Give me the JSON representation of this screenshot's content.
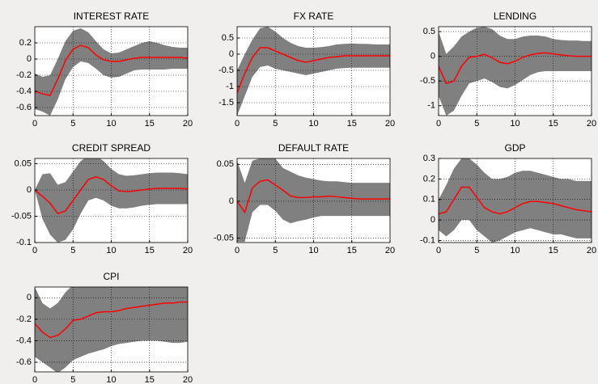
{
  "chart_data": [
    {
      "type": "line",
      "title": "INTEREST RATE",
      "x": [
        0,
        1,
        2,
        3,
        4,
        5,
        6,
        7,
        8,
        9,
        10,
        11,
        12,
        13,
        14,
        15,
        16,
        17,
        18,
        19,
        20
      ],
      "band": {
        "color": "#808080",
        "upper": [
          -0.18,
          -0.22,
          -0.2,
          0.0,
          0.22,
          0.35,
          0.38,
          0.33,
          0.22,
          0.12,
          0.07,
          0.08,
          0.12,
          0.16,
          0.2,
          0.22,
          0.2,
          0.17,
          0.15,
          0.14,
          0.14
        ],
        "lower": [
          -0.62,
          -0.65,
          -0.7,
          -0.5,
          -0.25,
          -0.1,
          -0.03,
          -0.05,
          -0.12,
          -0.2,
          -0.23,
          -0.22,
          -0.18,
          -0.14,
          -0.13,
          -0.13,
          -0.13,
          -0.13,
          -0.12,
          -0.12,
          -0.12
        ]
      },
      "series": [
        {
          "color": "#ff0000",
          "values": [
            -0.4,
            -0.43,
            -0.45,
            -0.25,
            -0.02,
            0.12,
            0.17,
            0.14,
            0.05,
            -0.01,
            -0.03,
            -0.03,
            -0.01,
            0.01,
            0.02,
            0.02,
            0.02,
            0.02,
            0.02,
            0.02,
            0.01
          ]
        }
      ],
      "xlim": [
        0,
        20
      ],
      "xticks": [
        0,
        5,
        10,
        15,
        20
      ],
      "ylim": [
        -0.7,
        0.4
      ],
      "yticks": [
        -0.6,
        -0.4,
        -0.2,
        0,
        0.2
      ],
      "grid": true
    },
    {
      "type": "line",
      "title": "FX RATE",
      "x": [
        0,
        1,
        2,
        3,
        4,
        5,
        6,
        7,
        8,
        9,
        10,
        11,
        12,
        13,
        14,
        15,
        16,
        17,
        18,
        19,
        20
      ],
      "band": {
        "color": "#808080",
        "upper": [
          -0.5,
          0,
          0.45,
          0.8,
          0.85,
          0.7,
          0.5,
          0.35,
          0.25,
          0.2,
          0.2,
          0.22,
          0.25,
          0.3,
          0.32,
          0.33,
          0.32,
          0.32,
          0.3,
          0.3,
          0.3
        ],
        "lower": [
          -1.9,
          -1.3,
          -0.7,
          -0.4,
          -0.35,
          -0.45,
          -0.5,
          -0.55,
          -0.6,
          -0.65,
          -0.6,
          -0.55,
          -0.5,
          -0.45,
          -0.43,
          -0.42,
          -0.42,
          -0.42,
          -0.42,
          -0.42,
          -0.42
        ]
      },
      "series": [
        {
          "color": "#ff0000",
          "values": [
            -1.2,
            -0.6,
            -0.1,
            0.2,
            0.2,
            0.1,
            0,
            -0.1,
            -0.2,
            -0.25,
            -0.2,
            -0.15,
            -0.1,
            -0.08,
            -0.05,
            -0.05,
            -0.05,
            -0.05,
            -0.05,
            -0.05,
            -0.05
          ]
        }
      ],
      "xlim": [
        0,
        20
      ],
      "xticks": [
        0,
        5,
        10,
        15,
        20
      ],
      "ylim": [
        -1.9,
        0.85
      ],
      "yticks": [
        -1.5,
        -1,
        -0.5,
        0,
        0.5
      ],
      "grid": true
    },
    {
      "type": "line",
      "title": "LENDING",
      "x": [
        0,
        1,
        2,
        3,
        4,
        5,
        6,
        7,
        8,
        9,
        10,
        11,
        12,
        13,
        14,
        15,
        16,
        17,
        18,
        19,
        20
      ],
      "band": {
        "color": "#808080",
        "upper": [
          0.5,
          0.05,
          0.2,
          0.4,
          0.5,
          0.58,
          0.6,
          0.55,
          0.42,
          0.35,
          0.35,
          0.4,
          0.42,
          0.42,
          0.4,
          0.35,
          0.33,
          0.32,
          0.32,
          0.31,
          0.31
        ],
        "lower": [
          -0.8,
          -1.2,
          -1.1,
          -0.8,
          -0.55,
          -0.5,
          -0.45,
          -0.52,
          -0.62,
          -0.65,
          -0.58,
          -0.48,
          -0.38,
          -0.32,
          -0.3,
          -0.3,
          -0.3,
          -0.3,
          -0.3,
          -0.3,
          -0.3
        ]
      },
      "series": [
        {
          "color": "#ff0000",
          "values": [
            -0.2,
            -0.55,
            -0.5,
            -0.2,
            -0.02,
            0,
            0.04,
            -0.03,
            -0.12,
            -0.15,
            -0.1,
            -0.02,
            0.03,
            0.06,
            0.07,
            0.05,
            0.03,
            0.01,
            0,
            0,
            0
          ]
        }
      ],
      "xlim": [
        0,
        20
      ],
      "xticks": [
        0,
        5,
        10,
        15,
        20
      ],
      "ylim": [
        -1.2,
        0.6
      ],
      "yticks": [
        -1,
        -0.5,
        0,
        0.5
      ],
      "grid": true
    },
    {
      "type": "line",
      "title": "CREDIT SPREAD",
      "x": [
        0,
        1,
        2,
        3,
        4,
        5,
        6,
        7,
        8,
        9,
        10,
        11,
        12,
        13,
        14,
        15,
        16,
        17,
        18,
        19,
        20
      ],
      "band": {
        "color": "#808080",
        "upper": [
          0,
          0.03,
          0.032,
          0.01,
          0.015,
          0.035,
          0.055,
          0.065,
          0.065,
          0.055,
          0.04,
          0.03,
          0.027,
          0.028,
          0.03,
          0.032,
          0.033,
          0.033,
          0.033,
          0.032,
          0.03
        ],
        "lower": [
          0,
          -0.055,
          -0.085,
          -0.1,
          -0.095,
          -0.075,
          -0.045,
          -0.02,
          -0.015,
          -0.02,
          -0.03,
          -0.035,
          -0.035,
          -0.033,
          -0.03,
          -0.028,
          -0.027,
          -0.027,
          -0.027,
          -0.027,
          -0.027
        ]
      },
      "series": [
        {
          "color": "#ff0000",
          "values": [
            0,
            -0.012,
            -0.025,
            -0.045,
            -0.04,
            -0.02,
            0,
            0.02,
            0.025,
            0.02,
            0.008,
            -0.002,
            -0.003,
            -0.002,
            0,
            0.002,
            0.003,
            0.003,
            0.003,
            0.003,
            0.002
          ]
        }
      ],
      "xlim": [
        0,
        20
      ],
      "xticks": [
        0,
        5,
        10,
        15,
        20
      ],
      "ylim": [
        -0.1,
        0.06
      ],
      "yticks": [
        -0.1,
        -0.05,
        0,
        0.05
      ],
      "grid": true
    },
    {
      "type": "line",
      "title": "DEFAULT RATE",
      "x": [
        0,
        1,
        2,
        3,
        4,
        5,
        6,
        7,
        8,
        9,
        10,
        11,
        12,
        13,
        14,
        15,
        16,
        17,
        18,
        19,
        20
      ],
      "band": {
        "color": "#808080",
        "upper": [
          0.055,
          0.025,
          0.055,
          0.058,
          0.058,
          0.058,
          0.045,
          0.04,
          0.035,
          0.032,
          0.03,
          0.028,
          0.027,
          0.027,
          0.026,
          0.025,
          0.025,
          0.025,
          0.025,
          0.025,
          0.025
        ],
        "lower": [
          -0.055,
          -0.055,
          -0.015,
          -0.005,
          -0.005,
          -0.013,
          -0.025,
          -0.03,
          -0.027,
          -0.025,
          -0.022,
          -0.02,
          -0.02,
          -0.02,
          -0.02,
          -0.02,
          -0.02,
          -0.02,
          -0.02,
          -0.02,
          -0.02
        ]
      },
      "series": [
        {
          "color": "#ff0000",
          "values": [
            0,
            -0.015,
            0.018,
            0.027,
            0.029,
            0.022,
            0.015,
            0.007,
            0.005,
            0.005,
            0.006,
            0.006,
            0.007,
            0.006,
            0.005,
            0.004,
            0.003,
            0.003,
            0.003,
            0.003,
            0.003
          ]
        }
      ],
      "xlim": [
        0,
        20
      ],
      "xticks": [
        0,
        5,
        10,
        15,
        20
      ],
      "ylim": [
        -0.056,
        0.058
      ],
      "yticks": [
        -0.05,
        0,
        0.05
      ],
      "grid": true
    },
    {
      "type": "line",
      "title": "GDP",
      "x": [
        0,
        1,
        2,
        3,
        4,
        5,
        6,
        7,
        8,
        9,
        10,
        11,
        12,
        13,
        14,
        15,
        16,
        17,
        18,
        19,
        20
      ],
      "band": {
        "color": "#808080",
        "upper": [
          0.1,
          0.17,
          0.25,
          0.3,
          0.3,
          0.27,
          0.23,
          0.2,
          0.2,
          0.21,
          0.23,
          0.24,
          0.24,
          0.23,
          0.22,
          0.21,
          0.2,
          0.2,
          0.19,
          0.19,
          0.19
        ],
        "lower": [
          -0.05,
          -0.08,
          -0.05,
          0,
          0,
          -0.05,
          -0.08,
          -0.11,
          -0.1,
          -0.08,
          -0.06,
          -0.05,
          -0.04,
          -0.05,
          -0.06,
          -0.07,
          -0.07,
          -0.08,
          -0.09,
          -0.09,
          -0.09
        ]
      },
      "series": [
        {
          "color": "#ff0000",
          "values": [
            0.03,
            0.04,
            0.1,
            0.16,
            0.16,
            0.11,
            0.06,
            0.04,
            0.03,
            0.04,
            0.06,
            0.08,
            0.09,
            0.09,
            0.085,
            0.08,
            0.07,
            0.06,
            0.05,
            0.045,
            0.04
          ]
        }
      ],
      "xlim": [
        0,
        20
      ],
      "xticks": [
        0,
        5,
        10,
        15,
        20
      ],
      "ylim": [
        -0.11,
        0.3
      ],
      "yticks": [
        -0.1,
        0,
        0.1,
        0.2,
        0.3
      ],
      "grid": true
    },
    {
      "type": "line",
      "title": "CPI",
      "x": [
        0,
        1,
        2,
        3,
        4,
        5,
        6,
        7,
        8,
        9,
        10,
        11,
        12,
        13,
        14,
        15,
        16,
        17,
        18,
        19,
        20
      ],
      "band": {
        "color": "#808080",
        "upper": [
          0.1,
          -0.05,
          -0.1,
          -0.05,
          0.05,
          0.12,
          0.12,
          0.12,
          0.12,
          0.12,
          0.12,
          0.12,
          0.12,
          0.12,
          0.12,
          0.12,
          0.12,
          0.12,
          0.12,
          0.12,
          0.12
        ],
        "lower": [
          -0.55,
          -0.6,
          -0.65,
          -0.7,
          -0.65,
          -0.58,
          -0.55,
          -0.52,
          -0.5,
          -0.48,
          -0.45,
          -0.43,
          -0.42,
          -0.41,
          -0.4,
          -0.4,
          -0.4,
          -0.41,
          -0.42,
          -0.42,
          -0.41
        ]
      },
      "series": [
        {
          "color": "#ff0000",
          "values": [
            -0.24,
            -0.32,
            -0.37,
            -0.35,
            -0.29,
            -0.21,
            -0.2,
            -0.17,
            -0.14,
            -0.13,
            -0.13,
            -0.12,
            -0.1,
            -0.09,
            -0.08,
            -0.07,
            -0.06,
            -0.05,
            -0.05,
            -0.04,
            -0.04
          ]
        }
      ],
      "xlim": [
        0,
        20
      ],
      "xticks": [
        0,
        5,
        10,
        15,
        20
      ],
      "ylim": [
        -0.69,
        0.1
      ],
      "yticks": [
        -0.6,
        -0.4,
        -0.2,
        0
      ],
      "grid": true
    }
  ]
}
